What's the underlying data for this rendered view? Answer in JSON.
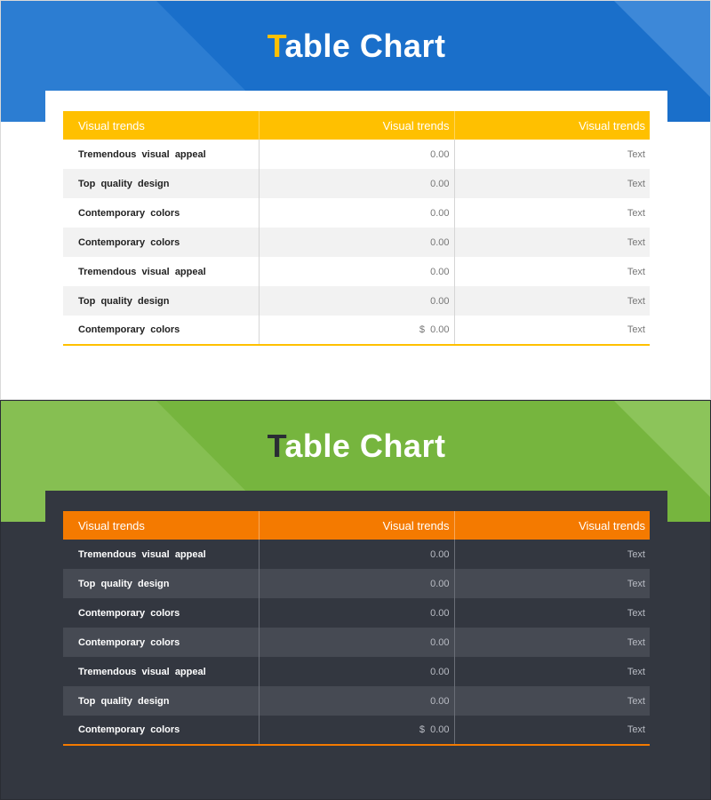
{
  "colors": {
    "blue_band": "#1a6fca",
    "blue_band_light": "#3d88d8",
    "green_band": "#76b53e",
    "green_band_light": "#8cc45a",
    "yellow": "#ffc000",
    "orange": "#f47a00",
    "dark_bg": "#333740",
    "dark_alt": "#464a53"
  },
  "top": {
    "title_first": "T",
    "title_rest": "able Chart",
    "title_first_color": "#ffc000",
    "headers": [
      "Visual trends",
      "Visual trends",
      "Visual trends"
    ]
  },
  "bottom": {
    "title_first": "T",
    "title_rest": "able Chart",
    "title_first_color": "#2a2d34",
    "headers": [
      "Visual trends",
      "Visual trends",
      "Visual trends"
    ]
  },
  "chart_data": [
    {
      "type": "table",
      "title": "Table Chart",
      "columns": [
        "Visual trends",
        "Visual trends",
        "Visual trends"
      ],
      "rows": [
        [
          "Tremendous  visual  appeal",
          "0.00",
          "Text"
        ],
        [
          "Top  quality  design",
          "0.00",
          "Text"
        ],
        [
          "Contemporary  colors",
          "0.00",
          "Text"
        ],
        [
          "Contemporary  colors",
          "0.00",
          "Text"
        ],
        [
          "Tremendous  visual  appeal",
          "0.00",
          "Text"
        ],
        [
          "Top  quality  design",
          "0.00",
          "Text"
        ],
        [
          "Contemporary  colors",
          "$  0.00",
          "Text"
        ]
      ]
    },
    {
      "type": "table",
      "title": "Table Chart",
      "columns": [
        "Visual trends",
        "Visual trends",
        "Visual trends"
      ],
      "rows": [
        [
          "Tremendous  visual  appeal",
          "0.00",
          "Text"
        ],
        [
          "Top  quality  design",
          "0.00",
          "Text"
        ],
        [
          "Contemporary  colors",
          "0.00",
          "Text"
        ],
        [
          "Contemporary  colors",
          "0.00",
          "Text"
        ],
        [
          "Tremendous  visual  appeal",
          "0.00",
          "Text"
        ],
        [
          "Top  quality  design",
          "0.00",
          "Text"
        ],
        [
          "Contemporary  colors",
          "$  0.00",
          "Text"
        ]
      ]
    }
  ]
}
